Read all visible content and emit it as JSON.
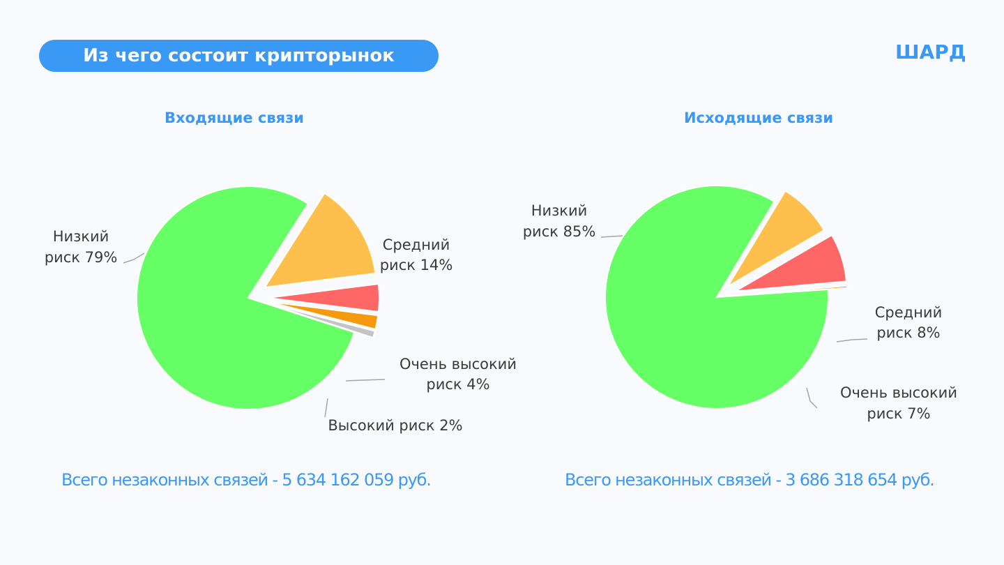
{
  "header": {
    "title": "Из чего состоит крипторынок",
    "logo_text": "ШАРД"
  },
  "chart_data": [
    {
      "type": "pie",
      "title": "Входящие связи",
      "categories": [
        "Низкий риск",
        "Средний риск",
        "Очень высокий риск",
        "Высокий риск",
        ""
      ],
      "values": [
        79,
        14,
        4,
        2,
        1
      ],
      "slice_labels": [
        [
          "Низкий",
          "риск 79%"
        ],
        [
          "Средний",
          "риск 14%"
        ],
        [
          "Очень высокий",
          "риск 4%"
        ],
        [
          "Высокий риск 2%"
        ],
        []
      ],
      "colors": [
        "#66ff66",
        "#ffbf4d",
        "#ff6666",
        "#f5990f",
        "#c4c4c4"
      ],
      "total_text": "Всего незаконных связей - 5 634 162 059 руб."
    },
    {
      "type": "pie",
      "title": "Исходящие связи",
      "categories": [
        "Низкий риск",
        "Средний риск",
        "Очень высокий риск",
        ""
      ],
      "values": [
        85,
        8,
        7,
        0.3
      ],
      "slice_labels": [
        [
          "Низкий",
          "риск 85%"
        ],
        [
          "Средний",
          "риск 8%"
        ],
        [
          "Очень высокий",
          "риск 7%"
        ],
        []
      ],
      "colors": [
        "#66ff66",
        "#ffbf4d",
        "#ff6666",
        "#f5990f"
      ],
      "total_text": "Всего незаконных связей - 3 686 318 654 руб."
    }
  ]
}
